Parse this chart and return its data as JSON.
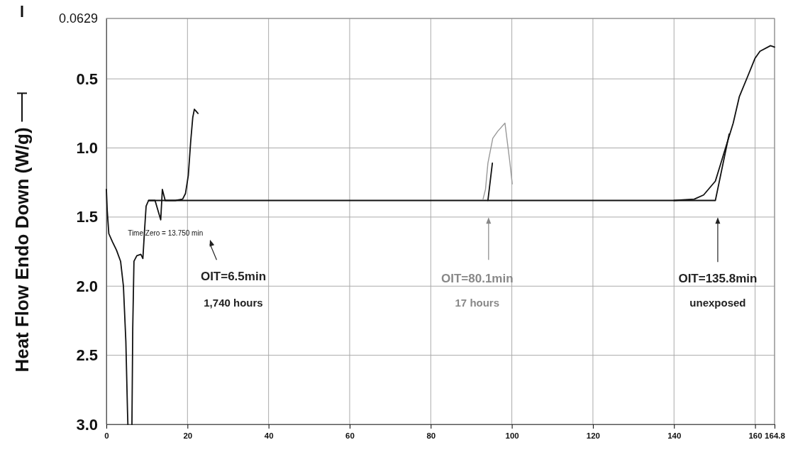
{
  "chart_data": {
    "type": "line",
    "ylabel": "Heat Flow Endo Down (W/g)",
    "xlim": [
      0,
      164.8
    ],
    "xticks": [
      0,
      20,
      40,
      60,
      80,
      100,
      120,
      140,
      160,
      164.8
    ],
    "ylim": [
      3.0,
      0.0629
    ],
    "yticks": [
      0.0629,
      {
        "value": 0.5,
        "label": "0.5"
      },
      {
        "value": 1.0,
        "label": "1.0"
      },
      {
        "value": 1.5,
        "label": "1.5"
      },
      {
        "value": 2.0,
        "label": "2.0"
      },
      {
        "value": 2.5,
        "label": "2.5"
      },
      {
        "value": 3.0,
        "label": "3.0"
      }
    ],
    "grid": true,
    "line_style": "solid",
    "marker": "none",
    "series": [
      {
        "color": "#111111",
        "x": [
          0,
          0.2,
          0.6,
          1.5,
          2.5,
          3.5,
          4.2,
          4.8,
          5.2,
          5.3,
          5.8,
          6.3,
          6.5,
          6.8,
          7.5,
          8.5,
          9.0,
          9.4,
          9.8,
          10.4,
          12,
          13.4,
          13.8,
          14.5,
          17,
          18.8,
          19.5,
          20.2,
          20.8,
          21.3,
          21.7,
          22.0,
          22.6
        ],
        "values": [
          1.3,
          1.45,
          1.62,
          1.68,
          1.74,
          1.82,
          2.0,
          2.4,
          2.9,
          3.0,
          null,
          3.0,
          2.3,
          1.82,
          1.78,
          1.77,
          1.8,
          1.6,
          1.42,
          1.38,
          1.38,
          1.52,
          1.3,
          1.38,
          1.38,
          1.37,
          1.33,
          1.2,
          0.95,
          0.78,
          0.72,
          0.73,
          0.75
        ]
      },
      {
        "color": "#111111",
        "x": [
          94.1,
          95.2
        ],
        "values": [
          1.38,
          1.11
        ]
      },
      {
        "color": "#111111",
        "x": [
          10.4,
          60,
          120,
          140,
          145,
          147.3,
          150.2,
          152.4,
          154.6,
          156.1,
          158.2,
          160,
          161.2,
          163.8,
          164.8
        ],
        "values": [
          1.38,
          1.38,
          1.38,
          1.38,
          1.37,
          1.34,
          1.24,
          1.03,
          0.82,
          0.63,
          0.48,
          0.35,
          0.3,
          0.26,
          0.27
        ]
      },
      {
        "color": "#111111",
        "x": [
          140,
          150.2,
          153.6
        ],
        "values": [
          1.38,
          1.38,
          0.9
        ]
      },
      {
        "color": "#999999",
        "x": [
          92.9,
          93.5,
          94.1,
          95.3,
          96.5,
          98.3,
          99.5,
          100.1
        ],
        "values": [
          1.37,
          1.3,
          1.11,
          0.93,
          0.88,
          0.82,
          1.1,
          1.26
        ]
      }
    ],
    "annotations": [
      "Time Zero = 13.750 min",
      "OIT=6.5min",
      "1,740 hours",
      "OIT=80.1min",
      "17 hours",
      "OIT=135.8min",
      "unexposed"
    ]
  }
}
